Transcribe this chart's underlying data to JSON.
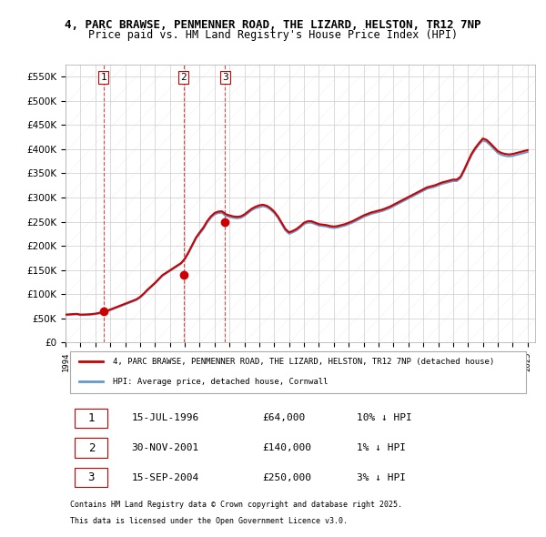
{
  "title1": "4, PARC BRAWSE, PENMENNER ROAD, THE LIZARD, HELSTON, TR12 7NP",
  "title2": "Price paid vs. HM Land Registry's House Price Index (HPI)",
  "legend_label_red": "4, PARC BRAWSE, PENMENNER ROAD, THE LIZARD, HELSTON, TR12 7NP (detached house)",
  "legend_label_blue": "HPI: Average price, detached house, Cornwall",
  "footer1": "Contains HM Land Registry data © Crown copyright and database right 2025.",
  "footer2": "This data is licensed under the Open Government Licence v3.0.",
  "transactions": [
    {
      "num": 1,
      "date": "15-JUL-1996",
      "price": "£64,000",
      "hpi": "10% ↓ HPI",
      "year": 1996.54
    },
    {
      "num": 2,
      "date": "30-NOV-2001",
      "price": "£140,000",
      "hpi": "1% ↓ HPI",
      "year": 2001.92
    },
    {
      "num": 3,
      "date": "15-SEP-2004",
      "price": "£250,000",
      "hpi": "3% ↓ HPI",
      "year": 2004.71
    }
  ],
  "transaction_values": [
    64000,
    140000,
    250000
  ],
  "background_color": "#ffffff",
  "plot_bg_color": "#ffffff",
  "grid_color": "#cccccc",
  "red_color": "#cc0000",
  "blue_color": "#6699cc",
  "ylim": [
    0,
    575000
  ],
  "yticks": [
    0,
    50000,
    100000,
    150000,
    200000,
    250000,
    300000,
    350000,
    400000,
    450000,
    500000,
    550000
  ],
  "hpi_data": {
    "years": [
      1994.0,
      1994.25,
      1994.5,
      1994.75,
      1995.0,
      1995.25,
      1995.5,
      1995.75,
      1996.0,
      1996.25,
      1996.5,
      1996.75,
      1997.0,
      1997.25,
      1997.5,
      1997.75,
      1998.0,
      1998.25,
      1998.5,
      1998.75,
      1999.0,
      1999.25,
      1999.5,
      1999.75,
      2000.0,
      2000.25,
      2000.5,
      2000.75,
      2001.0,
      2001.25,
      2001.5,
      2001.75,
      2002.0,
      2002.25,
      2002.5,
      2002.75,
      2003.0,
      2003.25,
      2003.5,
      2003.75,
      2004.0,
      2004.25,
      2004.5,
      2004.75,
      2005.0,
      2005.25,
      2005.5,
      2005.75,
      2006.0,
      2006.25,
      2006.5,
      2006.75,
      2007.0,
      2007.25,
      2007.5,
      2007.75,
      2008.0,
      2008.25,
      2008.5,
      2008.75,
      2009.0,
      2009.25,
      2009.5,
      2009.75,
      2010.0,
      2010.25,
      2010.5,
      2010.75,
      2011.0,
      2011.25,
      2011.5,
      2011.75,
      2012.0,
      2012.25,
      2012.5,
      2012.75,
      2013.0,
      2013.25,
      2013.5,
      2013.75,
      2014.0,
      2014.25,
      2014.5,
      2014.75,
      2015.0,
      2015.25,
      2015.5,
      2015.75,
      2016.0,
      2016.25,
      2016.5,
      2016.75,
      2017.0,
      2017.25,
      2017.5,
      2017.75,
      2018.0,
      2018.25,
      2018.5,
      2018.75,
      2019.0,
      2019.25,
      2019.5,
      2019.75,
      2020.0,
      2020.25,
      2020.5,
      2020.75,
      2021.0,
      2021.25,
      2021.5,
      2021.75,
      2022.0,
      2022.25,
      2022.5,
      2022.75,
      2023.0,
      2023.25,
      2023.5,
      2023.75,
      2024.0,
      2024.25,
      2024.5,
      2024.75,
      2025.0
    ],
    "values": [
      57000,
      57500,
      58000,
      58500,
      57000,
      57200,
      57500,
      58000,
      59000,
      60000,
      62000,
      64000,
      67000,
      70000,
      73000,
      76000,
      79000,
      82000,
      85000,
      88000,
      93000,
      100000,
      108000,
      115000,
      122000,
      130000,
      138000,
      143000,
      148000,
      153000,
      158000,
      163000,
      172000,
      185000,
      200000,
      215000,
      225000,
      235000,
      248000,
      258000,
      265000,
      268000,
      268000,
      262000,
      260000,
      258000,
      257000,
      258000,
      262000,
      268000,
      274000,
      278000,
      280000,
      282000,
      280000,
      275000,
      268000,
      258000,
      245000,
      232000,
      225000,
      228000,
      232000,
      238000,
      245000,
      248000,
      248000,
      245000,
      242000,
      241000,
      240000,
      238000,
      237000,
      238000,
      240000,
      242000,
      245000,
      248000,
      252000,
      256000,
      260000,
      263000,
      266000,
      268000,
      270000,
      272000,
      275000,
      278000,
      282000,
      286000,
      290000,
      294000,
      298000,
      302000,
      306000,
      310000,
      314000,
      318000,
      320000,
      322000,
      325000,
      328000,
      330000,
      332000,
      334000,
      334000,
      340000,
      355000,
      372000,
      388000,
      400000,
      410000,
      418000,
      415000,
      408000,
      400000,
      392000,
      388000,
      386000,
      385000,
      386000,
      388000,
      390000,
      392000,
      394000
    ]
  },
  "price_paid_data": {
    "years": [
      1994.0,
      1994.25,
      1994.5,
      1994.75,
      1995.0,
      1995.25,
      1995.5,
      1995.75,
      1996.0,
      1996.25,
      1996.5,
      1996.75,
      1997.0,
      1997.25,
      1997.5,
      1997.75,
      1998.0,
      1998.25,
      1998.5,
      1998.75,
      1999.0,
      1999.25,
      1999.5,
      1999.75,
      2000.0,
      2000.25,
      2000.5,
      2000.75,
      2001.0,
      2001.25,
      2001.5,
      2001.75,
      2002.0,
      2002.25,
      2002.5,
      2002.75,
      2003.0,
      2003.25,
      2003.5,
      2003.75,
      2004.0,
      2004.25,
      2004.5,
      2004.75,
      2005.0,
      2005.25,
      2005.5,
      2005.75,
      2006.0,
      2006.25,
      2006.5,
      2006.75,
      2007.0,
      2007.25,
      2007.5,
      2007.75,
      2008.0,
      2008.25,
      2008.5,
      2008.75,
      2009.0,
      2009.25,
      2009.5,
      2009.75,
      2010.0,
      2010.25,
      2010.5,
      2010.75,
      2011.0,
      2011.25,
      2011.5,
      2011.75,
      2012.0,
      2012.25,
      2012.5,
      2012.75,
      2013.0,
      2013.25,
      2013.5,
      2013.75,
      2014.0,
      2014.25,
      2014.5,
      2014.75,
      2015.0,
      2015.25,
      2015.5,
      2015.75,
      2016.0,
      2016.25,
      2016.5,
      2016.75,
      2017.0,
      2017.25,
      2017.5,
      2017.75,
      2018.0,
      2018.25,
      2018.5,
      2018.75,
      2019.0,
      2019.25,
      2019.5,
      2019.75,
      2020.0,
      2020.25,
      2020.5,
      2020.75,
      2021.0,
      2021.25,
      2021.5,
      2021.75,
      2022.0,
      2022.25,
      2022.5,
      2022.75,
      2023.0,
      2023.25,
      2023.5,
      2023.75,
      2024.0,
      2024.25,
      2024.5,
      2024.75,
      2025.0
    ],
    "values": [
      58000,
      58500,
      59000,
      59500,
      58000,
      58200,
      58500,
      59000,
      60000,
      61500,
      63500,
      65500,
      68500,
      71500,
      74500,
      77500,
      80500,
      83500,
      86500,
      89500,
      94500,
      101500,
      109500,
      116500,
      123500,
      131500,
      139500,
      144500,
      149500,
      154500,
      159500,
      164500,
      173500,
      187000,
      202000,
      217000,
      228000,
      238000,
      251000,
      261000,
      268000,
      271000,
      271500,
      265500,
      263000,
      261000,
      260000,
      261000,
      265000,
      271000,
      277000,
      281000,
      284000,
      285000,
      283000,
      278000,
      271000,
      261000,
      248000,
      235000,
      228000,
      231000,
      235000,
      241000,
      248000,
      251000,
      251000,
      248000,
      245000,
      244000,
      243000,
      241000,
      240000,
      241000,
      243000,
      245000,
      248000,
      251000,
      255000,
      259000,
      263000,
      266000,
      269000,
      271000,
      273000,
      275000,
      278000,
      281000,
      285000,
      289000,
      293000,
      297000,
      301000,
      305000,
      309000,
      313000,
      317000,
      321000,
      323000,
      325000,
      328000,
      331000,
      333000,
      335000,
      337000,
      337000,
      343000,
      358000,
      375000,
      391000,
      403000,
      413000,
      422000,
      419000,
      412000,
      404000,
      396000,
      392000,
      390000,
      389000,
      390000,
      392000,
      394000,
      396000,
      398000
    ]
  }
}
